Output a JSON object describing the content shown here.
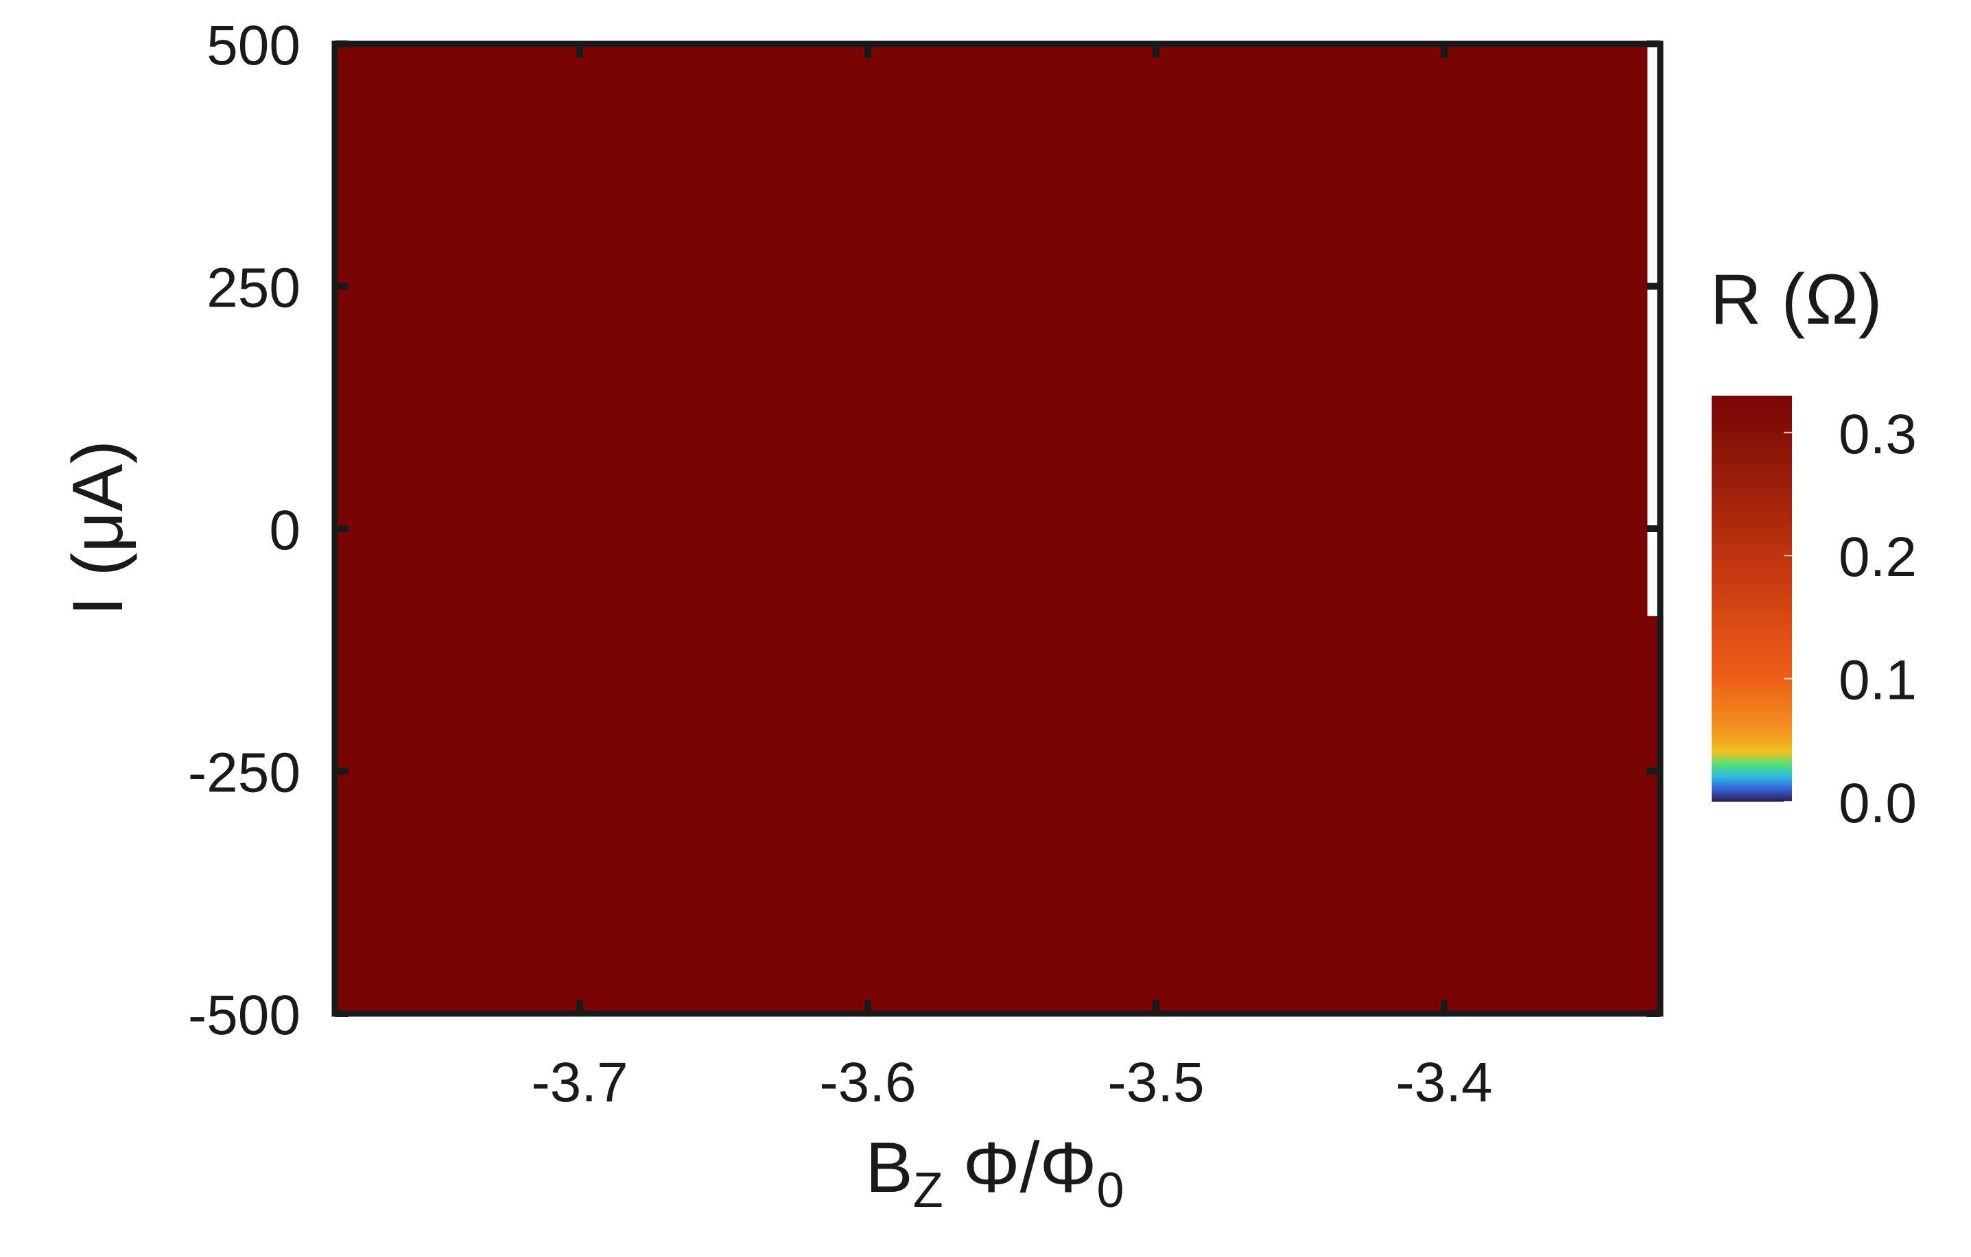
{
  "chart_data": {
    "type": "heatmap",
    "title": "",
    "xlabel": {
      "main": "B",
      "sub": "Z",
      "rest": " Φ/Φ",
      "sub2": "0"
    },
    "ylabel": "I (μA)",
    "xlim": [
      -3.785,
      -3.325
    ],
    "ylim": [
      -500,
      500
    ],
    "xticks": [
      -3.7,
      -3.6,
      -3.5,
      -3.4
    ],
    "xtick_labels": [
      "-3.7",
      "-3.6",
      "-3.5",
      "-3.4"
    ],
    "yticks": [
      500,
      250,
      0,
      -250,
      -500
    ],
    "ytick_labels": [
      "500",
      "250",
      "0",
      "-250",
      "-500"
    ],
    "fill_value": 0.32,
    "fill_color": "#790404",
    "missing_regions": [
      {
        "x_from": -3.328,
        "x_to": -3.325,
        "y_from": -90,
        "y_to": 500
      }
    ],
    "grid": false,
    "colorbar": {
      "label": "R (Ω)",
      "range": [
        0.0,
        0.33
      ],
      "ticks": [
        0.0,
        0.1,
        0.2,
        0.3
      ],
      "tick_labels": [
        "0.0",
        "0.1",
        "0.2",
        "0.3"
      ],
      "colormap_stops": [
        {
          "value": 0.0,
          "color": "#2a1e4a"
        },
        {
          "value": 0.01,
          "color": "#3a5fd8"
        },
        {
          "value": 0.02,
          "color": "#2fb7e0"
        },
        {
          "value": 0.03,
          "color": "#4fe07a"
        },
        {
          "value": 0.04,
          "color": "#f0c020"
        },
        {
          "value": 0.06,
          "color": "#f29020"
        },
        {
          "value": 0.1,
          "color": "#ee5f18"
        },
        {
          "value": 0.16,
          "color": "#d44414"
        },
        {
          "value": 0.23,
          "color": "#ac280c"
        },
        {
          "value": 0.29,
          "color": "#8a1408"
        },
        {
          "value": 0.33,
          "color": "#790404"
        }
      ]
    }
  }
}
